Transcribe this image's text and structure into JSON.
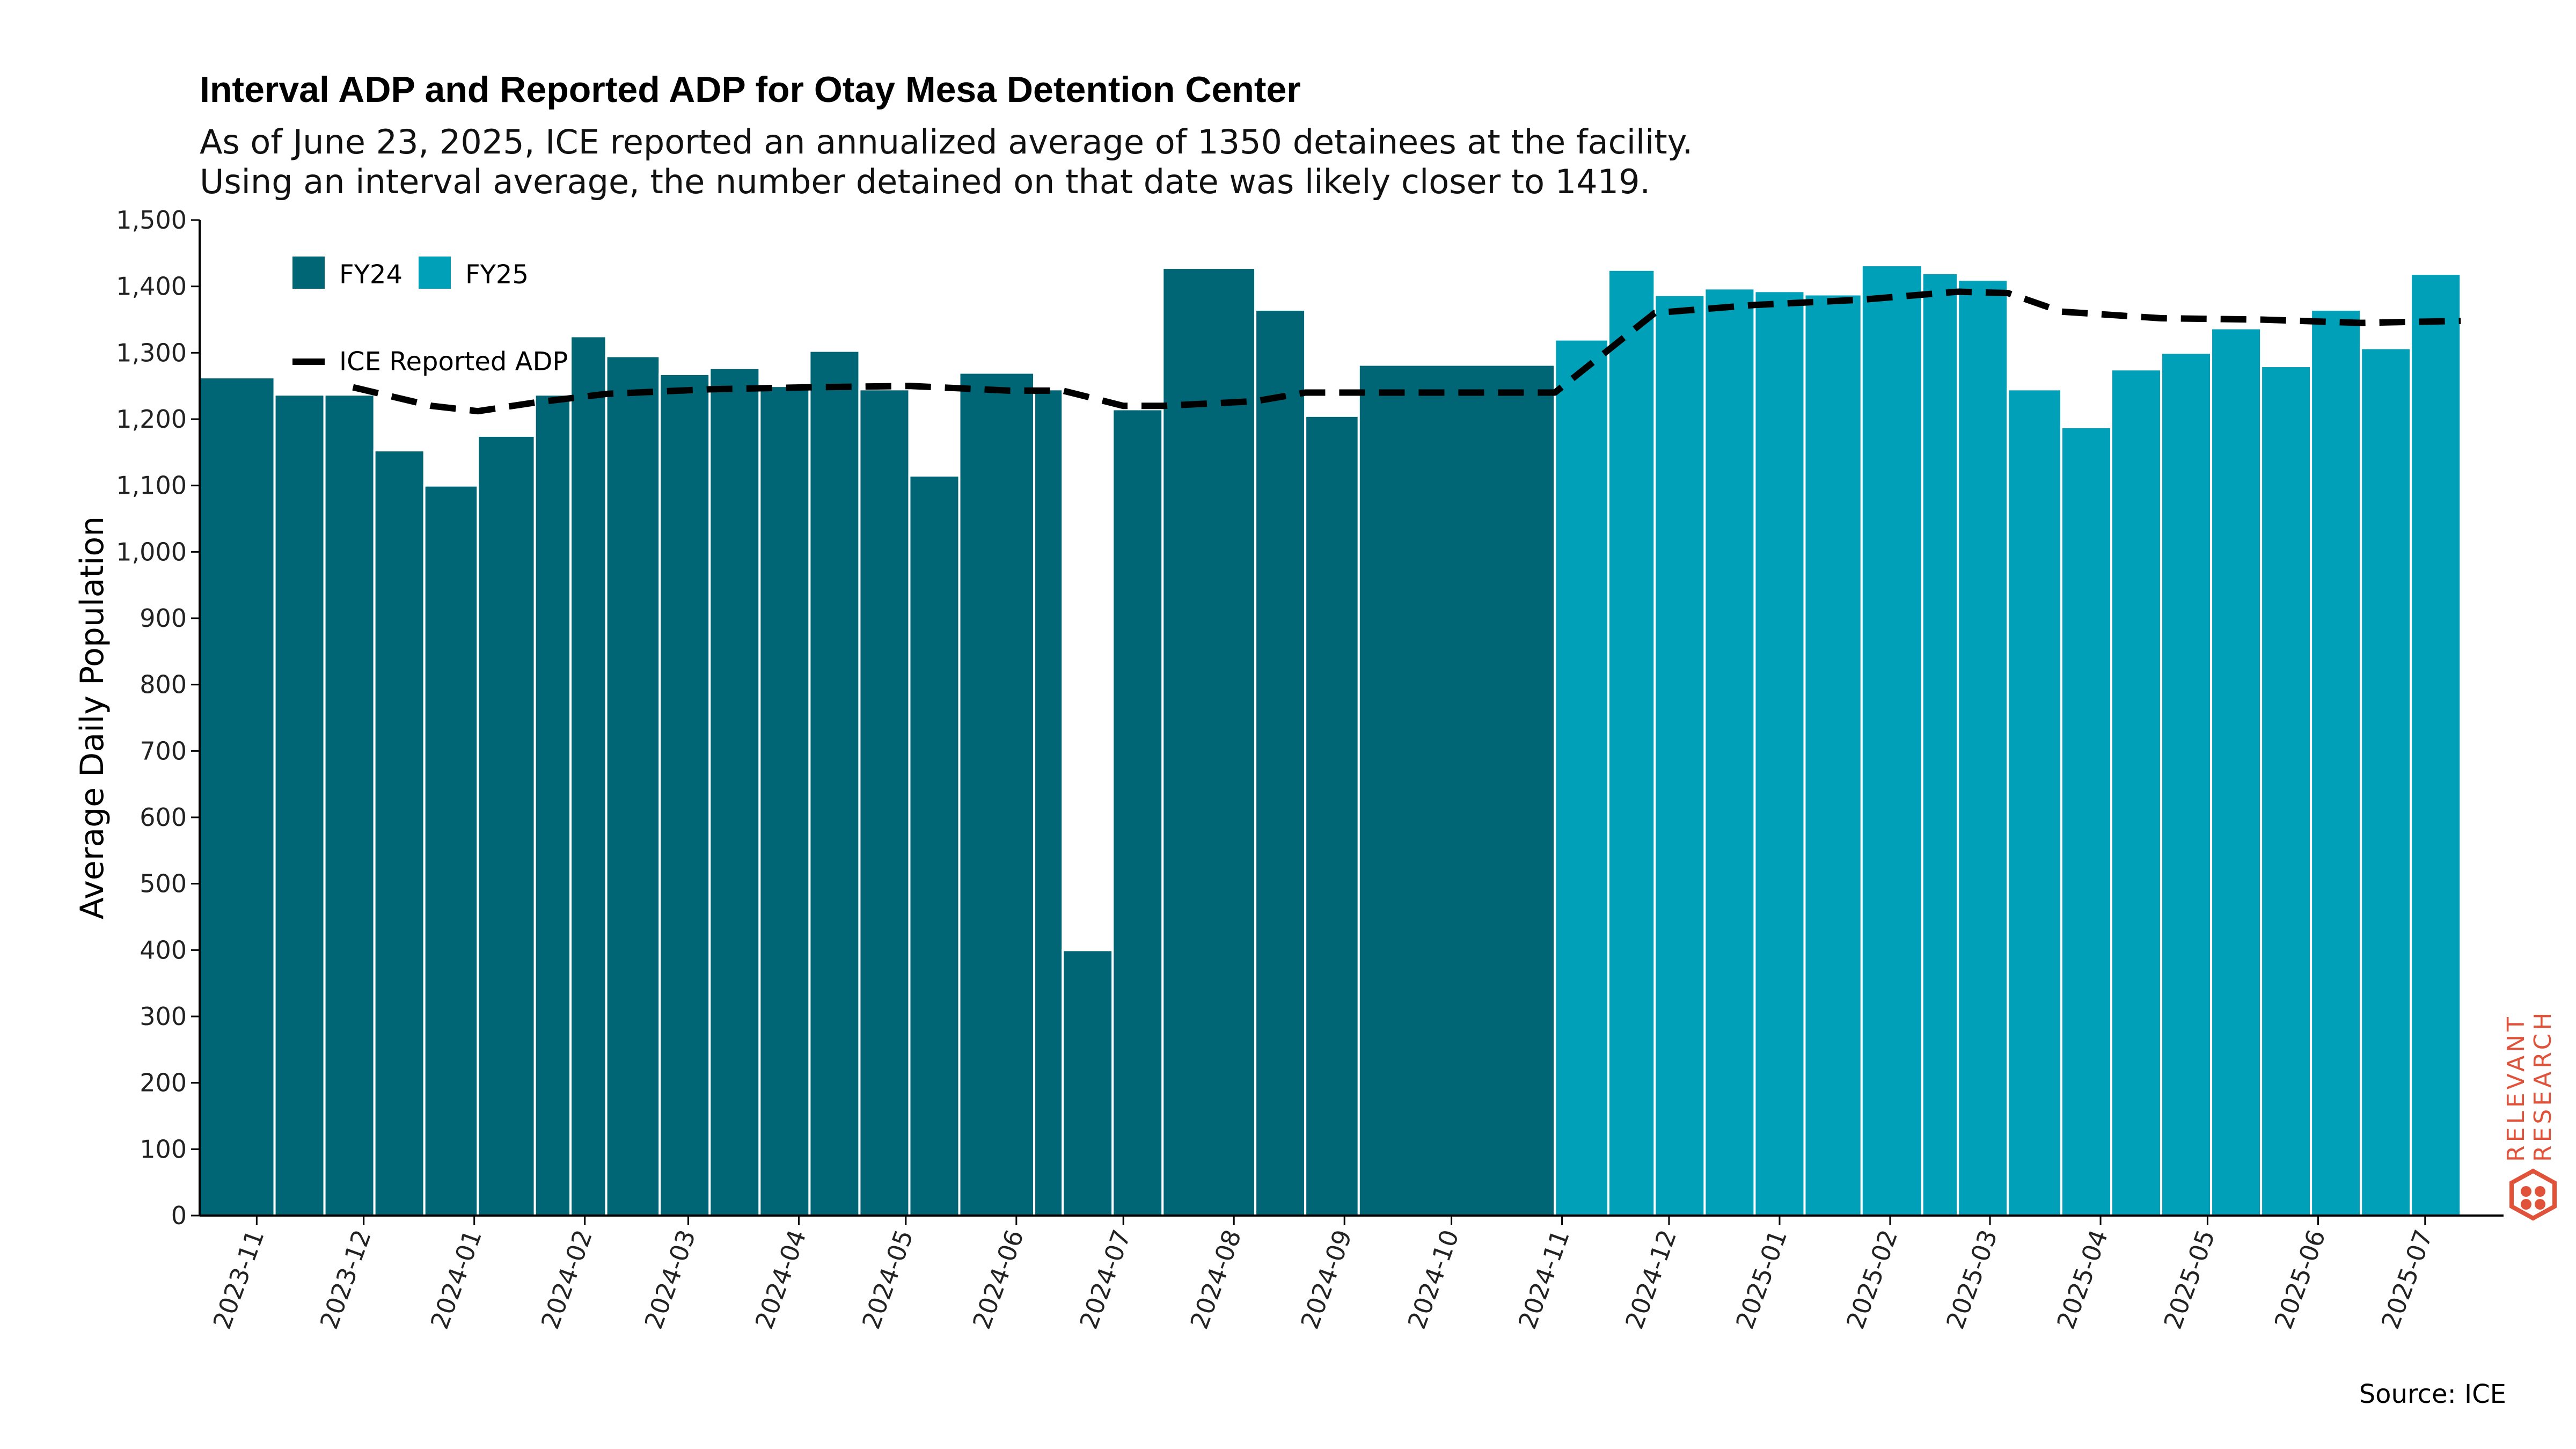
{
  "title": "Interval ADP and Reported ADP for Otay Mesa Detention Center",
  "subtitle_lines": [
    "As of June 23, 2025, ICE reported an annualized average of 1350 detainees at the facility.",
    "Using an interval average, the number detained on that date was likely closer to 1419."
  ],
  "source": "Source: ICE",
  "brand": {
    "line1": "RELEVANT",
    "line2": "RESEARCH",
    "color": "#e0533a",
    "icon": "hexagon-logo-icon"
  },
  "colors": {
    "fy24": "#006575",
    "fy25": "#00a0b8",
    "line": "#000000"
  },
  "chart_data": {
    "type": "bar",
    "ylabel": "Average Daily Population",
    "xlabel": "",
    "ylim": [
      0,
      1500
    ],
    "yticks": [
      0,
      100,
      200,
      300,
      400,
      500,
      600,
      700,
      800,
      900,
      1000,
      1100,
      1200,
      1300,
      1400,
      1500
    ],
    "ytick_labels": [
      "0",
      "100",
      "200",
      "300",
      "400",
      "500",
      "600",
      "700",
      "800",
      "900",
      "1,000",
      "1,100",
      "1,200",
      "1,300",
      "1,400",
      "1,500"
    ],
    "xlim": [
      "2023-10-16",
      "2025-07-23"
    ],
    "x_tick_labels": [
      "2023-11",
      "2023-12",
      "2024-01",
      "2024-02",
      "2024-03",
      "2024-04",
      "2024-05",
      "2024-06",
      "2024-07",
      "2024-08",
      "2024-09",
      "2024-10",
      "2024-11",
      "2024-12",
      "2025-01",
      "2025-02",
      "2025-03",
      "2025-04",
      "2025-05",
      "2025-06",
      "2025-07"
    ],
    "x_tick_dates": [
      "2023-11-01",
      "2023-12-01",
      "2024-01-01",
      "2024-02-01",
      "2024-03-01",
      "2024-04-01",
      "2024-05-01",
      "2024-06-01",
      "2024-07-01",
      "2024-08-01",
      "2024-09-01",
      "2024-10-01",
      "2024-11-01",
      "2024-12-01",
      "2025-01-01",
      "2025-02-01",
      "2025-03-01",
      "2025-04-01",
      "2025-05-01",
      "2025-06-01",
      "2025-07-01"
    ],
    "legend": {
      "position": "top-left",
      "entries": [
        "FY24",
        "FY25"
      ],
      "line_entry": "ICE Reported ADP"
    },
    "bars": [
      {
        "start": "2023-10-16",
        "end": "2023-11-06",
        "value": 1263,
        "series": "FY24"
      },
      {
        "start": "2023-11-06",
        "end": "2023-11-20",
        "value": 1237,
        "series": "FY24"
      },
      {
        "start": "2023-11-20",
        "end": "2023-12-04",
        "value": 1237,
        "series": "FY24"
      },
      {
        "start": "2023-12-04",
        "end": "2023-12-18",
        "value": 1153,
        "series": "FY24"
      },
      {
        "start": "2023-12-18",
        "end": "2024-01-02",
        "value": 1100,
        "series": "FY24"
      },
      {
        "start": "2024-01-02",
        "end": "2024-01-18",
        "value": 1175,
        "series": "FY24"
      },
      {
        "start": "2024-01-18",
        "end": "2024-01-28",
        "value": 1237,
        "series": "FY24"
      },
      {
        "start": "2024-01-28",
        "end": "2024-02-07",
        "value": 1325,
        "series": "FY24"
      },
      {
        "start": "2024-02-07",
        "end": "2024-02-22",
        "value": 1295,
        "series": "FY24"
      },
      {
        "start": "2024-02-22",
        "end": "2024-03-07",
        "value": 1268,
        "series": "FY24"
      },
      {
        "start": "2024-03-07",
        "end": "2024-03-21",
        "value": 1277,
        "series": "FY24"
      },
      {
        "start": "2024-03-21",
        "end": "2024-04-04",
        "value": 1250,
        "series": "FY24"
      },
      {
        "start": "2024-04-04",
        "end": "2024-04-18",
        "value": 1303,
        "series": "FY24"
      },
      {
        "start": "2024-04-18",
        "end": "2024-05-02",
        "value": 1245,
        "series": "FY24"
      },
      {
        "start": "2024-05-02",
        "end": "2024-05-16",
        "value": 1115,
        "series": "FY24"
      },
      {
        "start": "2024-05-16",
        "end": "2024-06-06",
        "value": 1270,
        "series": "FY24"
      },
      {
        "start": "2024-06-06",
        "end": "2024-06-14",
        "value": 1245,
        "series": "FY24"
      },
      {
        "start": "2024-06-14",
        "end": "2024-06-28",
        "value": 400,
        "series": "FY24"
      },
      {
        "start": "2024-06-28",
        "end": "2024-07-12",
        "value": 1215,
        "series": "FY24"
      },
      {
        "start": "2024-07-12",
        "end": "2024-08-07",
        "value": 1428,
        "series": "FY24"
      },
      {
        "start": "2024-08-07",
        "end": "2024-08-21",
        "value": 1365,
        "series": "FY24"
      },
      {
        "start": "2024-08-21",
        "end": "2024-09-05",
        "value": 1205,
        "series": "FY24"
      },
      {
        "start": "2024-09-05",
        "end": "2024-10-30",
        "value": 1282,
        "series": "FY24"
      },
      {
        "start": "2024-10-30",
        "end": "2024-11-14",
        "value": 1320,
        "series": "FY25"
      },
      {
        "start": "2024-11-14",
        "end": "2024-11-27",
        "value": 1425,
        "series": "FY25"
      },
      {
        "start": "2024-11-27",
        "end": "2024-12-11",
        "value": 1387,
        "series": "FY25"
      },
      {
        "start": "2024-12-11",
        "end": "2024-12-25",
        "value": 1397,
        "series": "FY25"
      },
      {
        "start": "2024-12-25",
        "end": "2025-01-08",
        "value": 1393,
        "series": "FY25"
      },
      {
        "start": "2025-01-08",
        "end": "2025-01-24",
        "value": 1388,
        "series": "FY25"
      },
      {
        "start": "2025-01-24",
        "end": "2025-02-10",
        "value": 1432,
        "series": "FY25"
      },
      {
        "start": "2025-02-10",
        "end": "2025-02-20",
        "value": 1420,
        "series": "FY25"
      },
      {
        "start": "2025-02-20",
        "end": "2025-03-06",
        "value": 1410,
        "series": "FY25"
      },
      {
        "start": "2025-03-06",
        "end": "2025-03-21",
        "value": 1245,
        "series": "FY25"
      },
      {
        "start": "2025-03-21",
        "end": "2025-04-04",
        "value": 1188,
        "series": "FY25"
      },
      {
        "start": "2025-04-04",
        "end": "2025-04-18",
        "value": 1275,
        "series": "FY25"
      },
      {
        "start": "2025-04-18",
        "end": "2025-05-02",
        "value": 1300,
        "series": "FY25"
      },
      {
        "start": "2025-05-02",
        "end": "2025-05-16",
        "value": 1337,
        "series": "FY25"
      },
      {
        "start": "2025-05-16",
        "end": "2025-05-30",
        "value": 1280,
        "series": "FY25"
      },
      {
        "start": "2025-05-30",
        "end": "2025-06-13",
        "value": 1365,
        "series": "FY25"
      },
      {
        "start": "2025-06-13",
        "end": "2025-06-27",
        "value": 1307,
        "series": "FY25"
      },
      {
        "start": "2025-06-27",
        "end": "2025-07-11",
        "value": 1419,
        "series": "FY25"
      }
    ],
    "reported_adp": {
      "name": "ICE Reported ADP",
      "style": "dashed",
      "points": [
        {
          "x": "2023-11-28",
          "y": 1248
        },
        {
          "x": "2023-12-20",
          "y": 1220
        },
        {
          "x": "2024-01-02",
          "y": 1212
        },
        {
          "x": "2024-01-18",
          "y": 1225
        },
        {
          "x": "2024-02-07",
          "y": 1238
        },
        {
          "x": "2024-03-07",
          "y": 1245
        },
        {
          "x": "2024-04-04",
          "y": 1248
        },
        {
          "x": "2024-05-02",
          "y": 1250
        },
        {
          "x": "2024-05-30",
          "y": 1243
        },
        {
          "x": "2024-06-14",
          "y": 1243
        },
        {
          "x": "2024-07-01",
          "y": 1220
        },
        {
          "x": "2024-07-12",
          "y": 1220
        },
        {
          "x": "2024-08-07",
          "y": 1227
        },
        {
          "x": "2024-08-21",
          "y": 1240
        },
        {
          "x": "2024-09-05",
          "y": 1240
        },
        {
          "x": "2024-10-30",
          "y": 1240
        },
        {
          "x": "2024-11-27",
          "y": 1360
        },
        {
          "x": "2024-12-25",
          "y": 1372
        },
        {
          "x": "2025-01-24",
          "y": 1380
        },
        {
          "x": "2025-02-20",
          "y": 1392
        },
        {
          "x": "2025-03-06",
          "y": 1390
        },
        {
          "x": "2025-03-21",
          "y": 1362
        },
        {
          "x": "2025-04-18",
          "y": 1352
        },
        {
          "x": "2025-05-16",
          "y": 1350
        },
        {
          "x": "2025-06-13",
          "y": 1345
        },
        {
          "x": "2025-07-11",
          "y": 1348
        }
      ]
    }
  }
}
